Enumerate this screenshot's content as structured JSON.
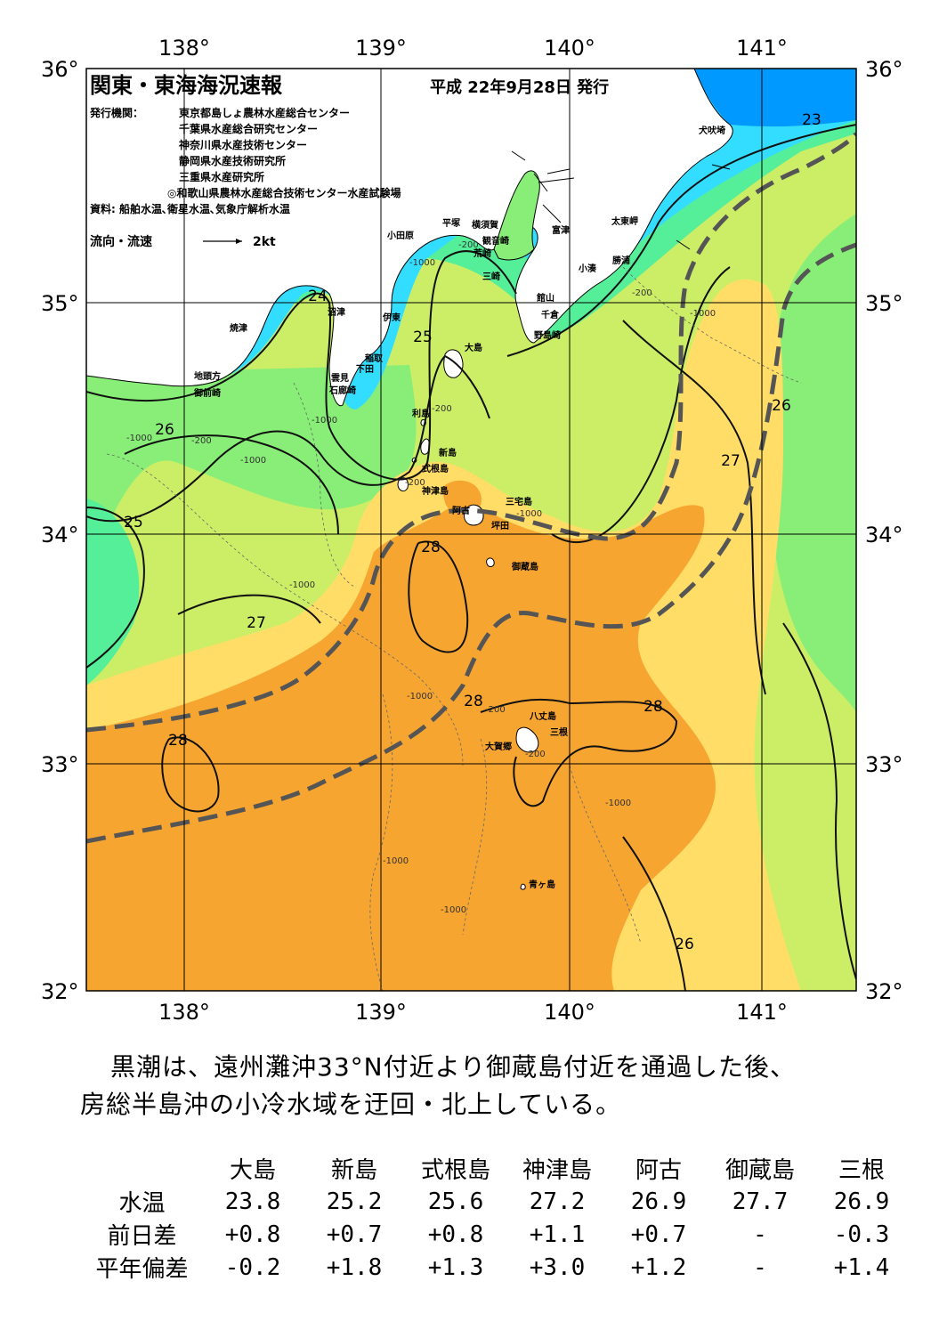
{
  "header": {
    "title": "関東・東海海況速報",
    "issue_date": "平成 22年9月28日 発行",
    "publisher_label": "発行機関：",
    "publishers": [
      "東京都島しょ農林水産総合センター",
      "千葉県水産総合研究センター",
      "神奈川県水産技術センター",
      "静岡県水産技術研究所",
      "三重県水産研究所",
      "◎和歌山県農林水産総合技術センター水産試験場"
    ],
    "source": "資料: 船舶水温､衛星水温､気象庁解析水温",
    "flow_legend_label": "流向・流速",
    "flow_legend_scale": "2kt"
  },
  "axes": {
    "lon_labels_top": [
      "138°",
      "139°",
      "140°",
      "141°"
    ],
    "lon_labels_bottom": [
      "138°",
      "139°",
      "140°",
      "141°"
    ],
    "lat_labels_left": [
      "36°",
      "35°",
      "34°",
      "33°",
      "32°"
    ],
    "lat_labels_right": [
      "36°",
      "35°",
      "34°",
      "33°",
      "32°"
    ]
  },
  "isotherm_labels": [
    "23",
    "24",
    "25",
    "26",
    "25",
    "27",
    "28",
    "28",
    "28",
    "28",
    "27",
    "26",
    "26"
  ],
  "depth_labels": [
    "-1000",
    "-200",
    "-1000",
    "-200",
    "-1000",
    "-200",
    "-1000",
    "-200",
    "-1000",
    "-200",
    "-1000",
    "-1000",
    "-1000",
    "-200",
    "-1000",
    "-200",
    "-1000",
    "-1000"
  ],
  "place_labels": [
    "犬吠埼",
    "太東岬",
    "勝浦",
    "小湊",
    "富津",
    "館山",
    "千倉",
    "野島崎",
    "横須賀",
    "観音崎",
    "平塚",
    "荒崎",
    "三崎",
    "小田原",
    "沼津",
    "伊東",
    "稲取",
    "下田",
    "雲見",
    "石廊崎",
    "焼津",
    "地頭方",
    "御前崎"
  ],
  "island_labels": [
    "大島",
    "利島",
    "新島",
    "式根島",
    "神津島",
    "三宅島",
    "阿古",
    "坪田",
    "御蔵島",
    "八丈島",
    "三根",
    "大賀郷",
    "青ヶ島"
  ],
  "colors": {
    "land": "#ffffff",
    "t23_below": "#0099ff",
    "t23_24": "#33ddff",
    "t24_25": "#55ee99",
    "t25_26": "#88ee77",
    "t26_27": "#ccee66",
    "t27_28": "#ffdd66",
    "t28_above": "#f7a531",
    "kuroshio_axis": "#555555"
  },
  "summary": {
    "line1": "黒潮は、遠州灘沖33°N付近より御蔵島付近を通過した後、",
    "line2": "房総半島沖の小冷水域を迂回・北上している。"
  },
  "table": {
    "columns": [
      "大島",
      "新島",
      "式根島",
      "神津島",
      "阿古",
      "御蔵島",
      "三根"
    ],
    "rows": [
      {
        "label": "水温",
        "values": [
          "23.8",
          "25.2",
          "25.6",
          "27.2",
          "26.9",
          "27.7",
          "26.9"
        ]
      },
      {
        "label": "前日差",
        "values": [
          "+0.8",
          "+0.7",
          "+0.8",
          "+1.1",
          "+0.7",
          "-",
          "-0.3"
        ]
      },
      {
        "label": "平年偏差",
        "values": [
          "-0.2",
          "+1.8",
          "+1.3",
          "+3.0",
          "+1.2",
          "-",
          "+1.4"
        ]
      }
    ]
  }
}
